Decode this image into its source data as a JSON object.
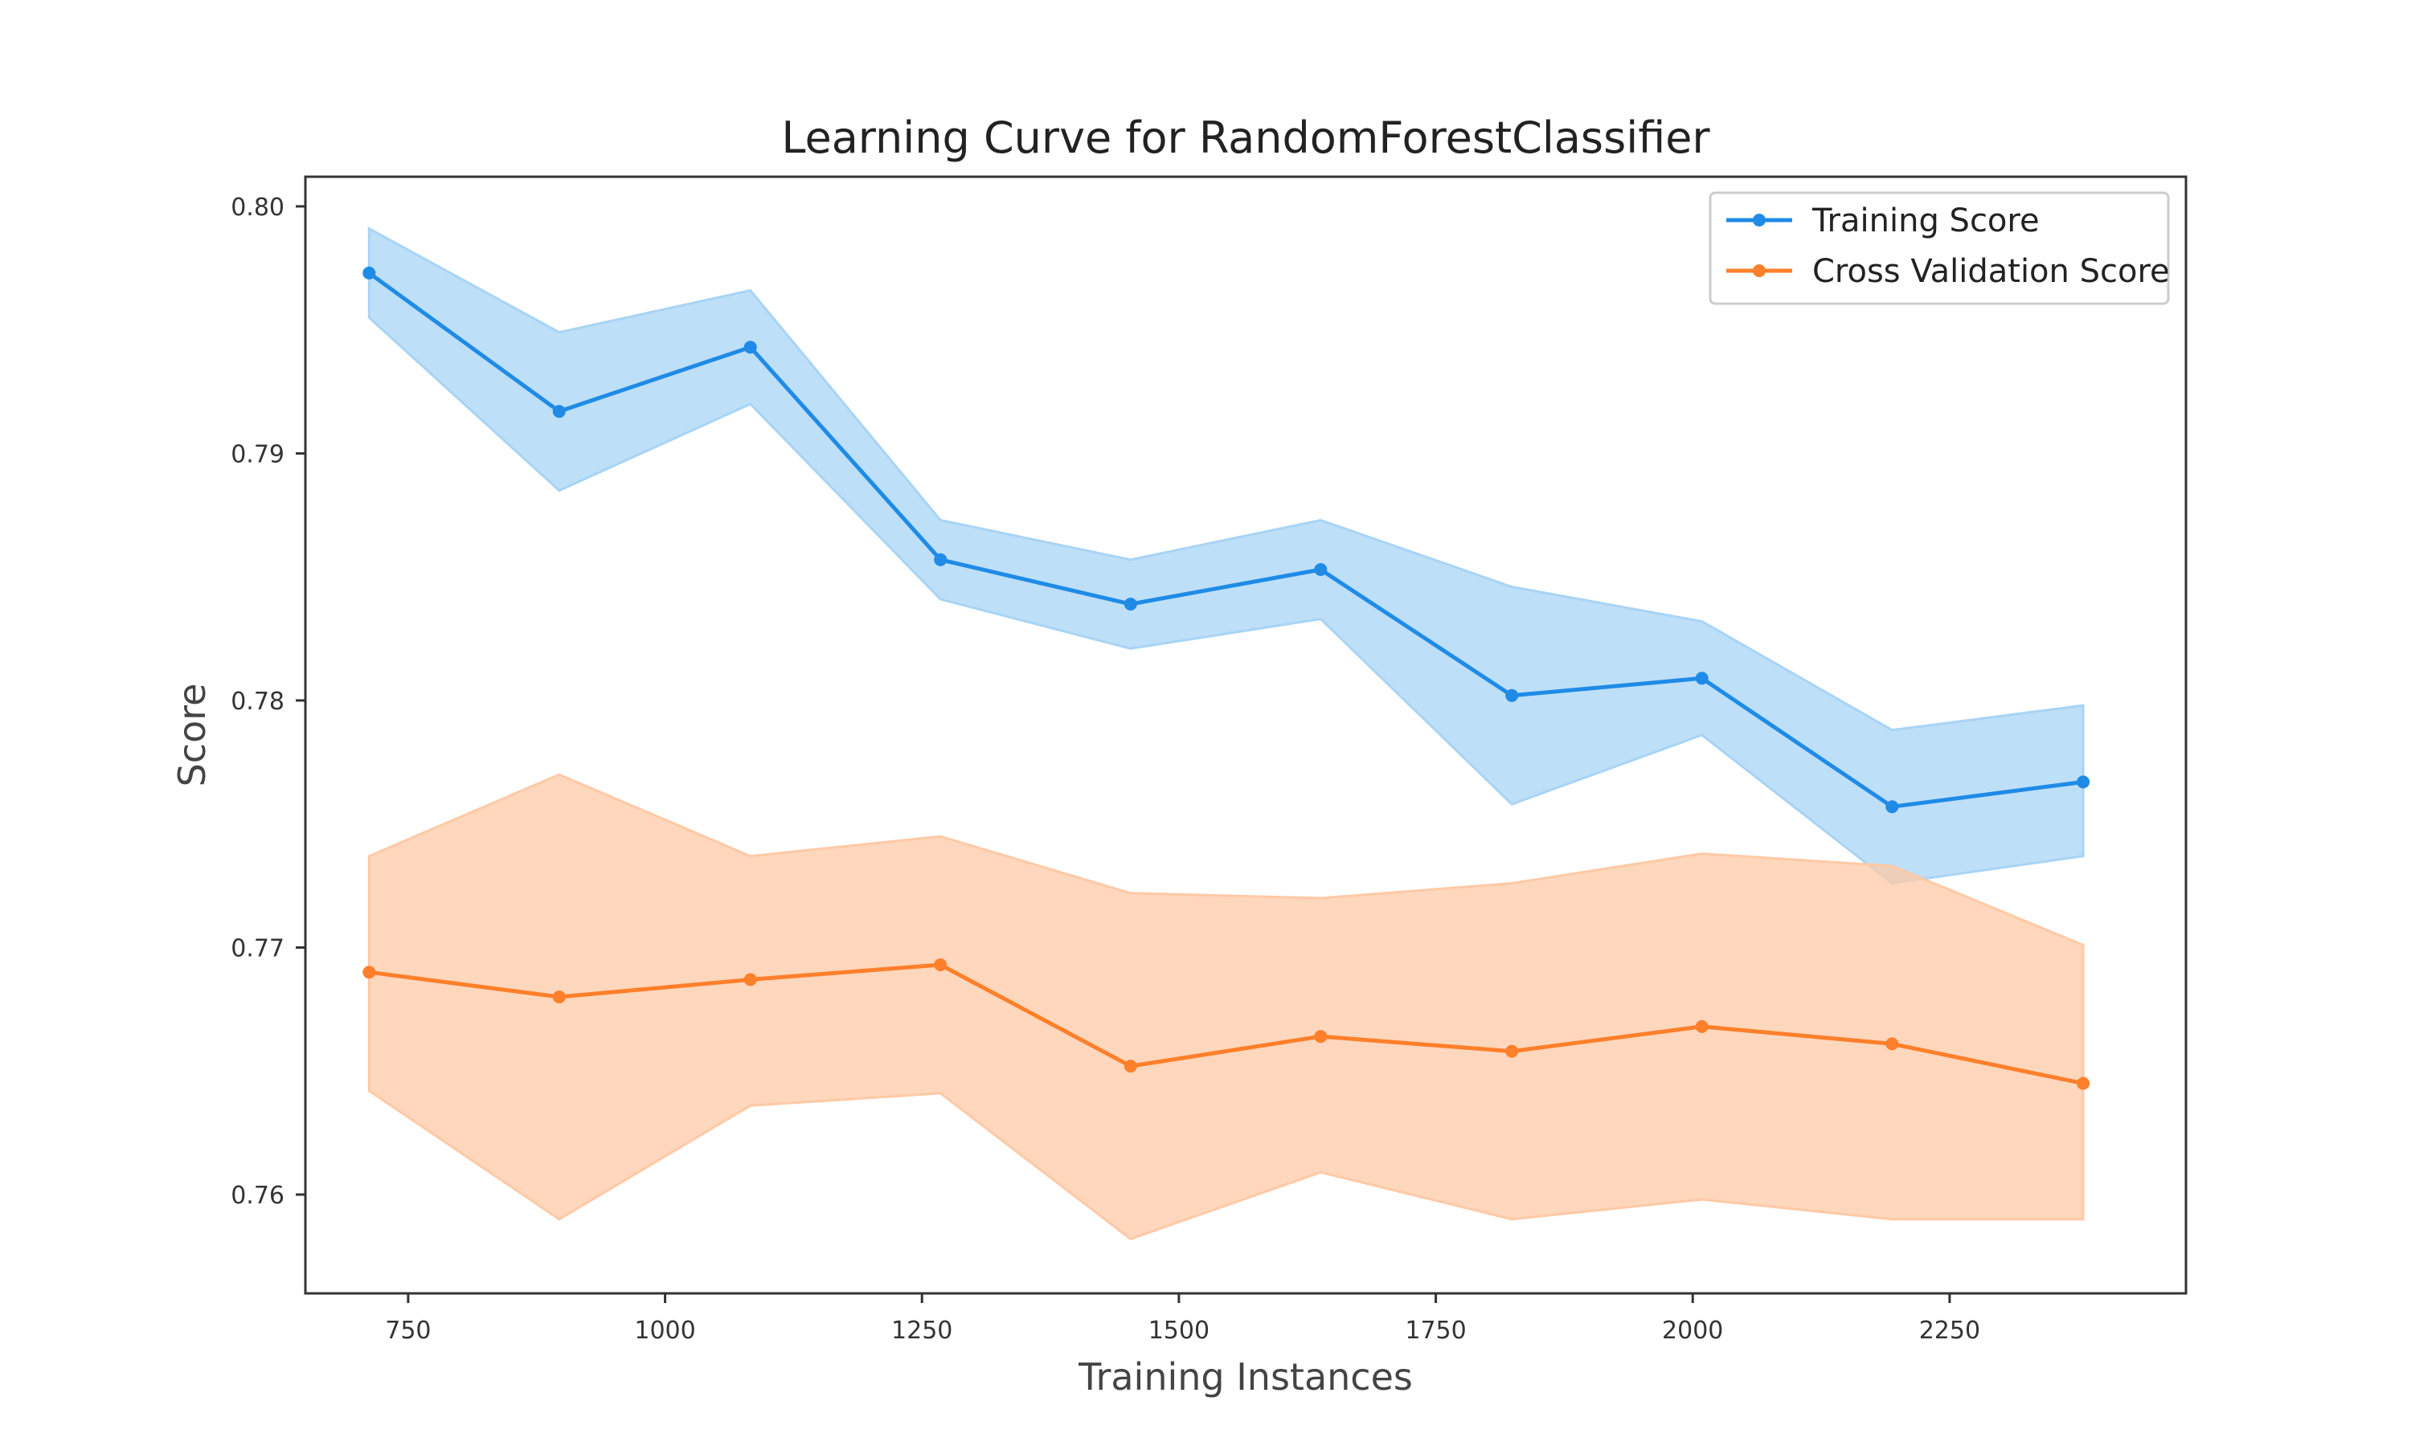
{
  "chart_data": {
    "type": "line",
    "title": "Learning Curve for RandomForestClassifier",
    "xlabel": "Training Instances",
    "ylabel": "Score",
    "xlim": [
      650,
      2480
    ],
    "ylim": [
      0.756,
      0.8012
    ],
    "xticks": [
      750,
      1000,
      1250,
      1500,
      1750,
      2000,
      2250
    ],
    "xtick_labels": [
      "750",
      "1000",
      "1250",
      "1500",
      "1750",
      "2000",
      "2250"
    ],
    "yticks": [
      0.76,
      0.77,
      0.78,
      0.79,
      0.8
    ],
    "ytick_labels": [
      "0.76",
      "0.77",
      "0.78",
      "0.79",
      "0.80"
    ],
    "grid": false,
    "legend_position": "top-right",
    "x": [
      712,
      897,
      1083,
      1268,
      1453,
      1638,
      1824,
      2009,
      2194,
      2380
    ],
    "series": [
      {
        "name": "Training Score",
        "color": "#1f8be6",
        "band_color": "#a8d4f5",
        "values": [
          0.7973,
          0.7917,
          0.7943,
          0.7857,
          0.7839,
          0.7853,
          0.7802,
          0.7809,
          0.7757,
          0.7767
        ],
        "upper": [
          0.7991,
          0.7949,
          0.7966,
          0.7873,
          0.7857,
          0.7873,
          0.7846,
          0.7832,
          0.7788,
          0.7798
        ],
        "lower": [
          0.7955,
          0.7885,
          0.792,
          0.7841,
          0.7821,
          0.7833,
          0.7758,
          0.7786,
          0.7726,
          0.7737
        ]
      },
      {
        "name": "Cross Validation Score",
        "color": "#ff7f2a",
        "band_color": "#ffc9a6",
        "values": [
          0.769,
          0.768,
          0.7687,
          0.7693,
          0.7652,
          0.7664,
          0.7658,
          0.7668,
          0.7661,
          0.7645
        ],
        "upper": [
          0.7737,
          0.777,
          0.7737,
          0.7745,
          0.7722,
          0.772,
          0.7726,
          0.7738,
          0.7733,
          0.7701
        ],
        "lower": [
          0.7642,
          0.759,
          0.7636,
          0.7641,
          0.7582,
          0.7609,
          0.759,
          0.7598,
          0.759,
          0.759
        ]
      }
    ]
  }
}
